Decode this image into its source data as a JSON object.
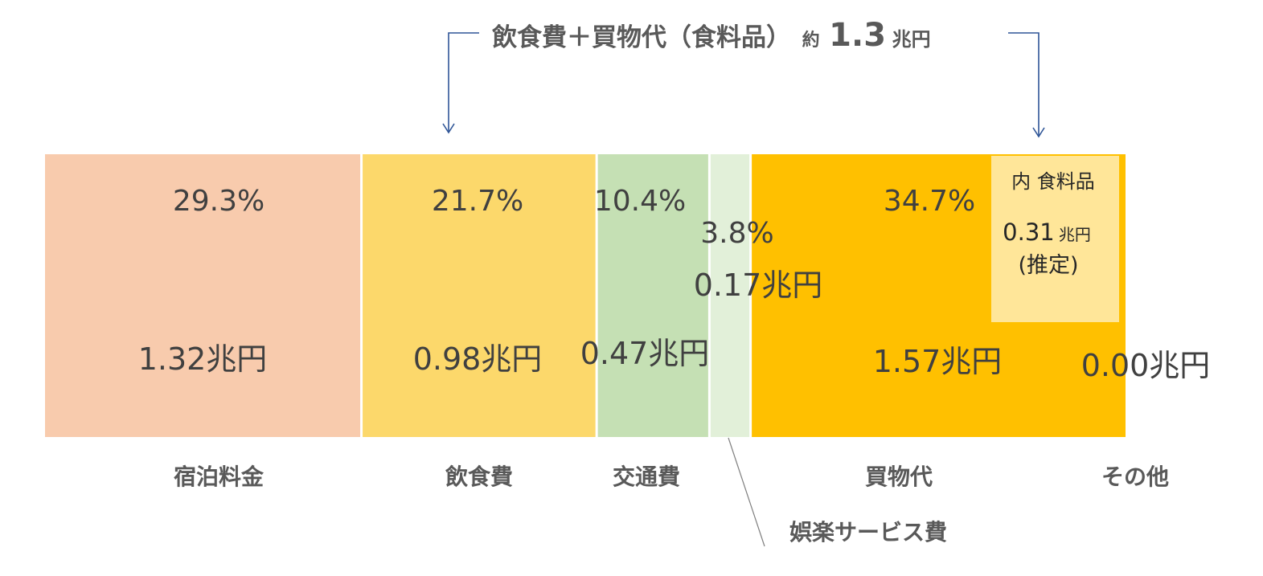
{
  "chart_data": {
    "type": "bar",
    "orientation": "horizontal-stacked-100",
    "title": "",
    "xlabel": "",
    "ylabel": "",
    "categories": [
      "宿泊料金",
      "飲食費",
      "交通費",
      "娯楽サービス費",
      "買物代",
      "その他"
    ],
    "percent_labels": [
      "29.3%",
      "21.7%",
      "10.4%",
      "3.8%",
      "34.7%",
      ""
    ],
    "percents": [
      29.3,
      21.7,
      10.4,
      3.8,
      34.7,
      0.0
    ],
    "value_labels": [
      "1.32兆円",
      "0.98兆円",
      "0.47兆円",
      "0.17兆円",
      "1.57兆円",
      "0.00兆円"
    ],
    "values_trillion_yen": [
      1.32,
      0.98,
      0.47,
      0.17,
      1.57,
      0.0
    ],
    "colors": [
      "#F8CBAD",
      "#FCD86B",
      "#C5E0B4",
      "#E2F0D9",
      "#FFC000",
      "#FFC000"
    ],
    "legend": "none",
    "grid": false
  },
  "headline": {
    "main": "飲食費＋買物代（食料品）",
    "prefix": "約",
    "number": "1.3",
    "unit": "兆円"
  },
  "inset": {
    "title": "内 食料品",
    "value": "0.31",
    "unit": "兆円",
    "note": "(推定)",
    "fill": "#FFE699"
  },
  "colors": {
    "arrow": "#2F5597",
    "text": "#404040",
    "category_text": "#595959",
    "leader": "#7F7F7F"
  }
}
